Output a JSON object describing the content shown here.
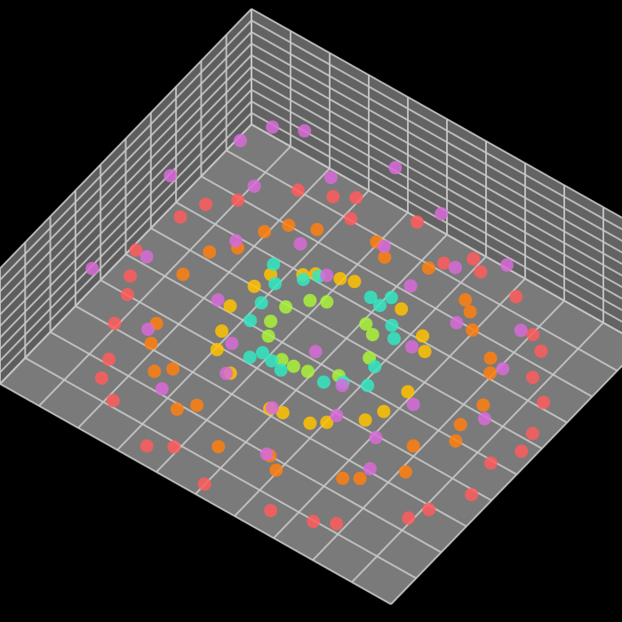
{
  "chart_data": {
    "type": "scatter3d",
    "title": "",
    "background": "#000000",
    "pane_color": "#7a7a7a",
    "grid_color": "#c8c8c8",
    "grid": true,
    "divisions": {
      "x": 10,
      "y": 10,
      "z": 10
    },
    "xlim": [
      -1,
      1
    ],
    "ylim": [
      -1,
      1
    ],
    "zlim": [
      0,
      1
    ],
    "palette": [
      "#ff5c5c",
      "#ff7f0f",
      "#ffc200",
      "#aaf23a",
      "#33e7c3",
      "#d86bd8"
    ],
    "series": [
      {
        "color": "#ff5c5c",
        "points": [
          [
            -0.92,
            0.31,
            0.05
          ],
          [
            -0.85,
            -0.22,
            0.04
          ],
          [
            -0.78,
            0.55,
            0.06
          ],
          [
            -0.7,
            -0.6,
            0.05
          ],
          [
            -0.62,
            0.78,
            0.04
          ],
          [
            -0.55,
            -0.8,
            0.06
          ],
          [
            -0.4,
            0.9,
            0.05
          ],
          [
            -0.3,
            -0.92,
            0.04
          ],
          [
            -0.12,
            0.95,
            0.05
          ],
          [
            0.02,
            -0.96,
            0.06
          ],
          [
            0.18,
            0.93,
            0.04
          ],
          [
            0.32,
            -0.9,
            0.05
          ],
          [
            0.45,
            0.85,
            0.06
          ],
          [
            0.58,
            -0.78,
            0.05
          ],
          [
            0.7,
            0.66,
            0.04
          ],
          [
            0.8,
            -0.55,
            0.05
          ],
          [
            0.88,
            0.4,
            0.06
          ],
          [
            0.93,
            -0.25,
            0.04
          ],
          [
            0.96,
            0.1,
            0.05
          ],
          [
            0.9,
            -0.05,
            0.06
          ],
          [
            -0.96,
            0.02,
            0.05
          ],
          [
            -0.88,
            0.45,
            0.04
          ],
          [
            -0.66,
            -0.72,
            0.06
          ],
          [
            -0.48,
            0.84,
            0.05
          ],
          [
            0.25,
            0.88,
            0.05
          ],
          [
            0.62,
            0.72,
            0.04
          ],
          [
            0.84,
            -0.45,
            0.05
          ],
          [
            -0.2,
            -0.86,
            0.06
          ],
          [
            0.1,
            0.82,
            0.05
          ],
          [
            -0.8,
            -0.4,
            0.04
          ],
          [
            0.76,
            0.5,
            0.05
          ],
          [
            0.5,
            -0.84,
            0.06
          ],
          [
            -0.35,
            0.78,
            0.05
          ],
          [
            -0.9,
            -0.12,
            0.04
          ],
          [
            0.94,
            0.22,
            0.05
          ]
        ]
      },
      {
        "color": "#ff7f0f",
        "points": [
          [
            -0.7,
            0.2,
            0.08
          ],
          [
            -0.65,
            -0.3,
            0.07
          ],
          [
            -0.58,
            0.45,
            0.09
          ],
          [
            -0.5,
            -0.55,
            0.08
          ],
          [
            -0.42,
            0.62,
            0.07
          ],
          [
            -0.3,
            -0.68,
            0.09
          ],
          [
            -0.18,
            0.72,
            0.08
          ],
          [
            -0.05,
            -0.74,
            0.07
          ],
          [
            0.08,
            0.73,
            0.09
          ],
          [
            0.22,
            -0.7,
            0.08
          ],
          [
            0.35,
            0.64,
            0.07
          ],
          [
            0.47,
            -0.56,
            0.09
          ],
          [
            0.57,
            0.46,
            0.08
          ],
          [
            0.65,
            -0.34,
            0.07
          ],
          [
            0.7,
            0.2,
            0.09
          ],
          [
            0.72,
            -0.05,
            0.08
          ],
          [
            -0.72,
            0.02,
            0.07
          ],
          [
            -0.6,
            -0.42,
            0.08
          ],
          [
            -0.52,
            0.55,
            0.09
          ],
          [
            0.3,
            0.68,
            0.08
          ],
          [
            0.52,
            -0.5,
            0.07
          ],
          [
            0.62,
            0.38,
            0.09
          ],
          [
            -0.25,
            -0.6,
            0.08
          ],
          [
            0.15,
            -0.64,
            0.07
          ],
          [
            -0.1,
            0.66,
            0.09
          ],
          [
            0.42,
            0.55,
            0.08
          ],
          [
            -0.45,
            -0.48,
            0.07
          ],
          [
            0.6,
            -0.2,
            0.09
          ],
          [
            -0.62,
            0.3,
            0.08
          ],
          [
            0.68,
            0.05,
            0.07
          ]
        ]
      },
      {
        "color": "#ffc200",
        "points": [
          [
            -0.42,
            0.12,
            0.14
          ],
          [
            -0.38,
            -0.2,
            0.15
          ],
          [
            -0.3,
            0.32,
            0.13
          ],
          [
            -0.22,
            -0.38,
            0.14
          ],
          [
            -0.1,
            0.42,
            0.15
          ],
          [
            0.02,
            -0.44,
            0.13
          ],
          [
            0.14,
            0.42,
            0.14
          ],
          [
            0.26,
            -0.36,
            0.15
          ],
          [
            0.35,
            0.28,
            0.13
          ],
          [
            0.41,
            -0.14,
            0.14
          ],
          [
            0.43,
            0.02,
            0.15
          ],
          [
            -0.44,
            -0.04,
            0.13
          ],
          [
            -0.34,
            -0.3,
            0.14
          ],
          [
            0.3,
            0.34,
            0.15
          ],
          [
            0.2,
            -0.4,
            0.13
          ],
          [
            -0.16,
            0.4,
            0.14
          ],
          [
            0.38,
            -0.24,
            0.15
          ],
          [
            -0.26,
            0.36,
            0.13
          ],
          [
            0.08,
            -0.43,
            0.14
          ],
          [
            -0.4,
            0.22,
            0.15
          ]
        ]
      },
      {
        "color": "#aaf23a",
        "points": [
          [
            -0.22,
            0.06,
            0.22
          ],
          [
            -0.18,
            -0.14,
            0.23
          ],
          [
            -0.1,
            0.2,
            0.22
          ],
          [
            0.0,
            -0.22,
            0.23
          ],
          [
            0.1,
            0.2,
            0.22
          ],
          [
            0.18,
            -0.14,
            0.23
          ],
          [
            0.22,
            0.04,
            0.22
          ],
          [
            0.16,
            0.16,
            0.23
          ],
          [
            -0.16,
            0.16,
            0.22
          ],
          [
            -0.06,
            -0.22,
            0.23
          ],
          [
            0.06,
            -0.2,
            0.22
          ],
          [
            -0.22,
            -0.06,
            0.23
          ]
        ]
      },
      {
        "color": "#33e7c3",
        "points": [
          [
            -0.3,
            0.1,
            0.3
          ],
          [
            -0.26,
            -0.16,
            0.31
          ],
          [
            -0.18,
            0.26,
            0.3
          ],
          [
            -0.06,
            -0.3,
            0.31
          ],
          [
            0.06,
            0.3,
            0.3
          ],
          [
            0.18,
            -0.26,
            0.31
          ],
          [
            0.27,
            0.16,
            0.3
          ],
          [
            0.3,
            -0.04,
            0.31
          ],
          [
            -0.12,
            -0.28,
            0.3
          ],
          [
            0.12,
            0.28,
            0.31
          ],
          [
            0.24,
            -0.2,
            0.3
          ],
          [
            -0.28,
            -0.04,
            0.31
          ],
          [
            -0.22,
            0.2,
            0.3
          ],
          [
            0.0,
            -0.32,
            0.31
          ],
          [
            0.22,
            0.22,
            0.3
          ],
          [
            -0.36,
            0.18,
            0.32
          ],
          [
            0.34,
            -0.16,
            0.32
          ],
          [
            0.14,
            0.34,
            0.33
          ],
          [
            -0.14,
            -0.35,
            0.32
          ]
        ]
      },
      {
        "color": "#d86bd8",
        "points": [
          [
            -0.8,
            0.6,
            0.5
          ],
          [
            -0.6,
            0.8,
            0.55
          ],
          [
            -0.4,
            0.7,
            0.45
          ],
          [
            -0.7,
            -0.3,
            0.6
          ],
          [
            -0.5,
            -0.6,
            0.5
          ],
          [
            -0.3,
            -0.8,
            0.4
          ],
          [
            0.1,
            0.8,
            0.5
          ],
          [
            0.3,
            0.6,
            0.45
          ],
          [
            0.5,
            0.7,
            0.55
          ],
          [
            0.7,
            0.5,
            0.4
          ],
          [
            0.8,
            0.2,
            0.5
          ],
          [
            0.6,
            -0.2,
            0.45
          ],
          [
            0.4,
            -0.5,
            0.5
          ],
          [
            0.2,
            -0.7,
            0.6
          ],
          [
            -0.1,
            -0.6,
            0.5
          ],
          [
            -0.3,
            0.3,
            0.42
          ],
          [
            0.3,
            -0.3,
            0.44
          ],
          [
            -0.5,
            0.1,
            0.48
          ],
          [
            0.5,
            0.3,
            0.5
          ],
          [
            0.0,
            0.5,
            0.46
          ],
          [
            -0.2,
            -0.4,
            0.44
          ],
          [
            0.2,
            0.4,
            0.42
          ],
          [
            -0.6,
            0.4,
            0.52
          ],
          [
            0.6,
            -0.5,
            0.5
          ],
          [
            -0.9,
            0.2,
            0.55
          ],
          [
            0.9,
            -0.1,
            0.5
          ],
          [
            -0.4,
            -0.2,
            0.4
          ],
          [
            0.4,
            0.1,
            0.42
          ],
          [
            -0.1,
            0.2,
            0.45
          ],
          [
            0.1,
            -0.2,
            0.43
          ],
          [
            -0.7,
            0.7,
            0.6
          ],
          [
            0.7,
            -0.7,
            0.55
          ],
          [
            -0.2,
            0.9,
            0.5
          ],
          [
            0.3,
            -0.9,
            0.52
          ],
          [
            -0.85,
            -0.5,
            0.58
          ]
        ]
      }
    ]
  }
}
